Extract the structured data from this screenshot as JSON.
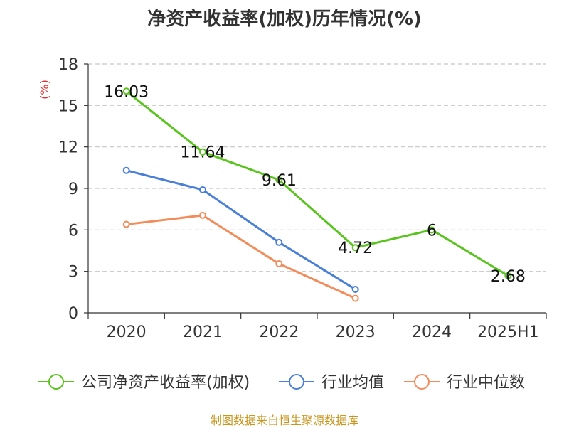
{
  "chart_data": {
    "type": "line",
    "title": "净资产收益率(加权)历年情况(%)",
    "ylabel": "(%)",
    "categories": [
      "2020",
      "2021",
      "2022",
      "2023",
      "2024",
      "2025H1"
    ],
    "ylim": [
      0,
      18
    ],
    "yticks": [
      0,
      3,
      6,
      9,
      12,
      15,
      18
    ],
    "grid": true,
    "legend_position": "bottom",
    "series": [
      {
        "name": "公司净资产收益率(加权)",
        "color": "#5ac41e",
        "values": [
          16.03,
          11.64,
          9.61,
          4.72,
          6,
          2.68
        ],
        "labels": [
          "16.03",
          "11.64",
          "9.61",
          "4.72",
          "6",
          "2.68"
        ]
      },
      {
        "name": "行业均值",
        "color": "#4a7fd9",
        "values": [
          10.3,
          8.9,
          5.1,
          1.7,
          null,
          null
        ]
      },
      {
        "name": "行业中位数",
        "color": "#f28c5a",
        "values": [
          6.4,
          7.05,
          3.55,
          1.05,
          null,
          null
        ]
      }
    ]
  },
  "source": "制图数据来自恒生聚源数据库"
}
